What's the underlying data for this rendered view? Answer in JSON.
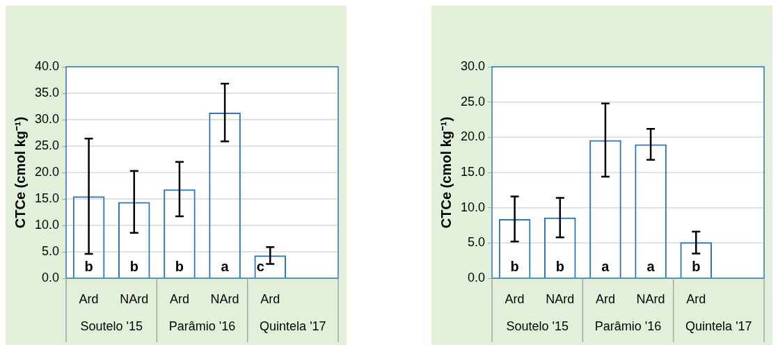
{
  "chart_data": [
    {
      "type": "bar",
      "ylabel": "CTCe (cmol kg⁻¹)",
      "categories": [
        "Ard",
        "NArd",
        "Ard",
        "NArd",
        "Ard",
        null
      ],
      "values": [
        15.5,
        14.4,
        16.8,
        31.3,
        4.3,
        null
      ],
      "color": "#2e75b6",
      "errors": [
        [
          4.6,
          26.4
        ],
        [
          8.6,
          20.3
        ],
        [
          11.7,
          22.0
        ],
        [
          25.9,
          36.8
        ],
        [
          2.7,
          5.9
        ],
        null
      ],
      "value_labels": [
        "b",
        "b",
        "b",
        "a",
        "c",
        null
      ],
      "ylim": [
        0,
        40
      ],
      "yticks": [
        {
          "value": 0,
          "label": "0.0"
        },
        {
          "value": 5,
          "label": "5.0"
        },
        {
          "value": 10,
          "label": "10.0"
        },
        {
          "value": 15,
          "label": "15.0"
        },
        {
          "value": 20,
          "label": "20.0"
        },
        {
          "value": 25,
          "label": "25.0"
        },
        {
          "value": 30,
          "label": "30.0"
        },
        {
          "value": 35,
          "label": "35.0"
        },
        {
          "value": 40,
          "label": "40.0"
        }
      ],
      "grid": "y",
      "annotations": [
        "Soutelo '15",
        "Parâmio '16",
        "Quintela '17"
      ]
    },
    {
      "type": "bar",
      "ylabel": "CTCe (cmol kg⁻¹)",
      "categories": [
        "Ard",
        "NArd",
        "Ard",
        "NArd",
        "Ard",
        null
      ],
      "values": [
        8.4,
        8.6,
        19.6,
        19.0,
        5.1,
        null
      ],
      "color": "#2e75b6",
      "errors": [
        [
          5.2,
          11.6
        ],
        [
          5.8,
          11.4
        ],
        [
          14.4,
          24.8
        ],
        [
          16.8,
          21.2
        ],
        [
          3.5,
          6.6
        ],
        null
      ],
      "value_labels": [
        "b",
        "b",
        "a",
        "a",
        "b",
        null
      ],
      "ylim": [
        0,
        30
      ],
      "yticks": [
        {
          "value": 0,
          "label": "0.0"
        },
        {
          "value": 5,
          "label": "5.0"
        },
        {
          "value": 10,
          "label": "10.0"
        },
        {
          "value": 15,
          "label": "15.0"
        },
        {
          "value": 20,
          "label": "20.0"
        },
        {
          "value": 25,
          "label": "25.0"
        },
        {
          "value": 30,
          "label": "30.0"
        }
      ],
      "grid": "y",
      "annotations": [
        "Soutelo '15",
        "Parâmio '16",
        "Quintela '17"
      ]
    }
  ]
}
